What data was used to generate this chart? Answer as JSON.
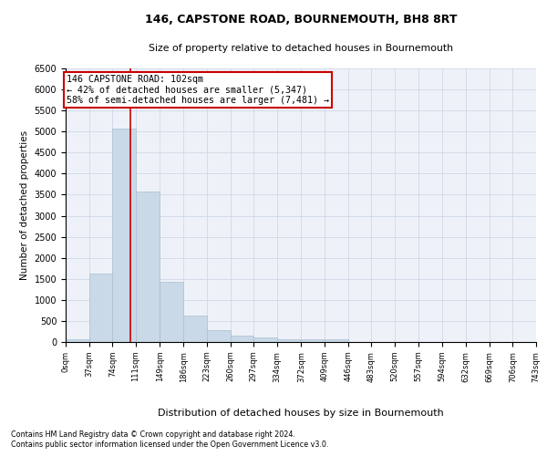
{
  "title": "146, CAPSTONE ROAD, BOURNEMOUTH, BH8 8RT",
  "subtitle": "Size of property relative to detached houses in Bournemouth",
  "xlabel": "Distribution of detached houses by size in Bournemouth",
  "ylabel": "Number of detached properties",
  "bar_values": [
    75,
    1620,
    5060,
    3570,
    1420,
    620,
    290,
    145,
    110,
    75,
    55,
    75,
    0,
    0,
    0,
    0,
    0,
    0,
    0,
    0
  ],
  "bin_edges": [
    0,
    37,
    74,
    111,
    149,
    186,
    223,
    260,
    297,
    334,
    372,
    409,
    446,
    483,
    520,
    557,
    594,
    632,
    669,
    706,
    743
  ],
  "bar_color": "#c9d9e8",
  "bar_edgecolor": "#aabfcf",
  "grid_color": "#d0d8e8",
  "bg_color": "#eef2f8",
  "property_size": 102,
  "red_line_color": "#cc0000",
  "annotation_line1": "146 CAPSTONE ROAD: 102sqm",
  "annotation_line2": "← 42% of detached houses are smaller (5,347)",
  "annotation_line3": "58% of semi-detached houses are larger (7,481) →",
  "annotation_box_color": "#cc0000",
  "ylim": [
    0,
    6500
  ],
  "xlim": [
    0,
    743
  ],
  "tick_labels": [
    "0sqm",
    "37sqm",
    "74sqm",
    "111sqm",
    "149sqm",
    "186sqm",
    "223sqm",
    "260sqm",
    "297sqm",
    "334sqm",
    "372sqm",
    "409sqm",
    "446sqm",
    "483sqm",
    "520sqm",
    "557sqm",
    "594sqm",
    "632sqm",
    "669sqm",
    "706sqm",
    "743sqm"
  ],
  "yticks": [
    0,
    500,
    1000,
    1500,
    2000,
    2500,
    3000,
    3500,
    4000,
    4500,
    5000,
    5500,
    6000,
    6500
  ],
  "footer_line1": "Contains HM Land Registry data © Crown copyright and database right 2024.",
  "footer_line2": "Contains public sector information licensed under the Open Government Licence v3.0."
}
